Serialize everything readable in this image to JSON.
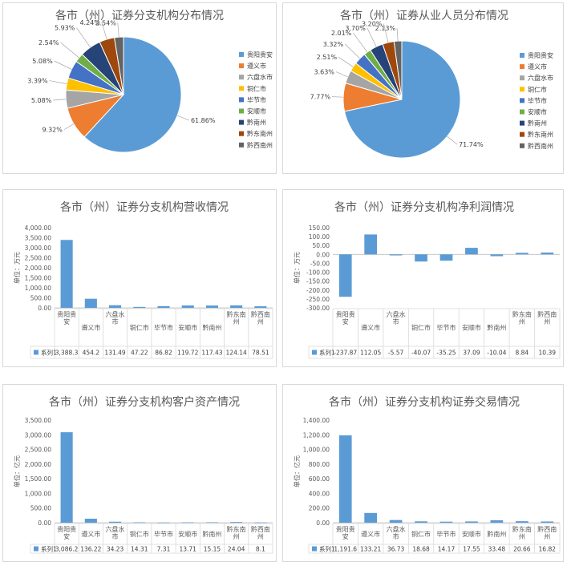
{
  "colors": {
    "slices": [
      "#5b9bd5",
      "#ed7d31",
      "#a5a5a5",
      "#ffc000",
      "#4472c4",
      "#70ad47",
      "#264478",
      "#9e480e",
      "#636363"
    ],
    "bar": "#5b9bd5",
    "grid": "#d9d9d9",
    "axis": "#bfbfbf"
  },
  "chart_data": [
    {
      "type": "pie",
      "title": "各市（州）证券分支机构分布情况",
      "categories": [
        "贵阳贵安",
        "遵义市",
        "六盘水市",
        "铜仁市",
        "毕节市",
        "安顺市",
        "黔南州",
        "黔东南州",
        "黔西南州"
      ],
      "labels": [
        "61.86%",
        "9.32%",
        "5.08%",
        "3.39%",
        "5.08%",
        "2.54%",
        "5.93%",
        "4.24%",
        "2.54%"
      ],
      "values": [
        61.86,
        9.32,
        5.08,
        3.39,
        5.08,
        2.54,
        5.93,
        4.24,
        2.54
      ],
      "legend": "right"
    },
    {
      "type": "pie",
      "title": "各市（州）证券从业人员分布情况",
      "categories": [
        "贵阳贵安",
        "遵义市",
        "六盘水市",
        "铜仁市",
        "毕节市",
        "安顺市",
        "黔南州",
        "黔东南州",
        "黔西南州"
      ],
      "labels": [
        "71.74%",
        "7.77%",
        "3.63%",
        "2.51%",
        "3.32%",
        "2.01%",
        "3.70%",
        "3.20%",
        "2.13%"
      ],
      "values": [
        71.74,
        7.77,
        3.63,
        2.51,
        3.32,
        2.01,
        3.7,
        3.2,
        2.13
      ],
      "legend": "right"
    },
    {
      "type": "bar",
      "title": "各市（州）证券分支机构营收情况",
      "ylabel": "单位：万元",
      "categories": [
        "贵阳贵安",
        "遵义市",
        "六盘水市",
        "铜仁市",
        "毕节市",
        "安顺市",
        "黔南州",
        "黔东南州",
        "黔西南州"
      ],
      "series": [
        {
          "name": "系列1",
          "values": [
            3388.3,
            454.2,
            131.49,
            47.22,
            86.82,
            119.72,
            117.43,
            124.14,
            78.51
          ],
          "labels": [
            "3,388.3",
            "454.2",
            "131.49",
            "47.22",
            "86.82",
            "119.72",
            "117.43",
            "124.14",
            "78.51"
          ]
        }
      ],
      "ylim": [
        0,
        4000
      ],
      "ticks": [
        "4,000.00",
        "3,500.00",
        "3,000.00",
        "2,500.00",
        "2,000.00",
        "1,500.00",
        "1,000.00",
        "500.00",
        "0.00"
      ],
      "grid": false
    },
    {
      "type": "bar",
      "title": "各市（州）证券分支机构净利润情况",
      "ylabel": "单位：万元",
      "categories": [
        "贵阳贵安",
        "遵义市",
        "六盘水市",
        "铜仁市",
        "毕节市",
        "安顺市",
        "黔南州",
        "黔东南州",
        "黔西南州"
      ],
      "series": [
        {
          "name": "系列1",
          "values": [
            -237.87,
            112.05,
            -5.57,
            -40.07,
            -35.25,
            37.09,
            -10.04,
            8.84,
            10.39
          ],
          "labels": [
            "-237.87",
            "112.05",
            "-5.57",
            "-40.07",
            "-35.25",
            "37.09",
            "-10.04",
            "8.84",
            "10.39"
          ]
        }
      ],
      "ylim": [
        -300,
        150
      ],
      "ticks": [
        "150.00",
        "100.00",
        "50.00",
        "0.00",
        "-50.00",
        "-100.00",
        "-150.00",
        "-200.00",
        "-250.00",
        "-300.00"
      ],
      "grid": false
    },
    {
      "type": "bar",
      "title": "各市（州）证券分支机构客户资产情况",
      "ylabel": "单位：亿元",
      "categories": [
        "贵阳贵安",
        "遵义市",
        "六盘水市",
        "铜仁市",
        "毕节市",
        "安顺市",
        "黔南州",
        "黔东南州",
        "黔西南州"
      ],
      "series": [
        {
          "name": "系列1",
          "values": [
            3086.2,
            136.22,
            34.23,
            14.31,
            7.31,
            13.71,
            15.15,
            24.04,
            8.1
          ],
          "labels": [
            "3,086.2",
            "136.22",
            "34.23",
            "14.31",
            "7.31",
            "13.71",
            "15.15",
            "24.04",
            "8.1"
          ]
        }
      ],
      "ylim": [
        0,
        3500
      ],
      "ticks": [
        "3,500.00",
        "3,000.00",
        "2,500.00",
        "2,000.00",
        "1,500.00",
        "1,000.00",
        "500.00",
        "0.00"
      ],
      "grid": false
    },
    {
      "type": "bar",
      "title": "各市（州）证券分支机构证券交易情况",
      "ylabel": "单位：亿元",
      "categories": [
        "贵阳贵安",
        "遵义市",
        "六盘水市",
        "铜仁市",
        "毕节市",
        "安顺市",
        "黔南州",
        "黔东南州",
        "黔西南州"
      ],
      "series": [
        {
          "name": "系列1",
          "values": [
            1191.6,
            133.21,
            36.73,
            18.68,
            14.17,
            17.55,
            33.48,
            20.66,
            16.82
          ],
          "labels": [
            "1,191.6",
            "133.21",
            "36.73",
            "18.68",
            "14.17",
            "17.55",
            "33.48",
            "20.66",
            "16.82"
          ]
        }
      ],
      "ylim": [
        0,
        1400
      ],
      "ticks": [
        "1,400.00",
        "1,200.00",
        "1,000.00",
        "800.00",
        "600.00",
        "400.00",
        "200.00",
        "0.00"
      ],
      "grid": false
    }
  ]
}
